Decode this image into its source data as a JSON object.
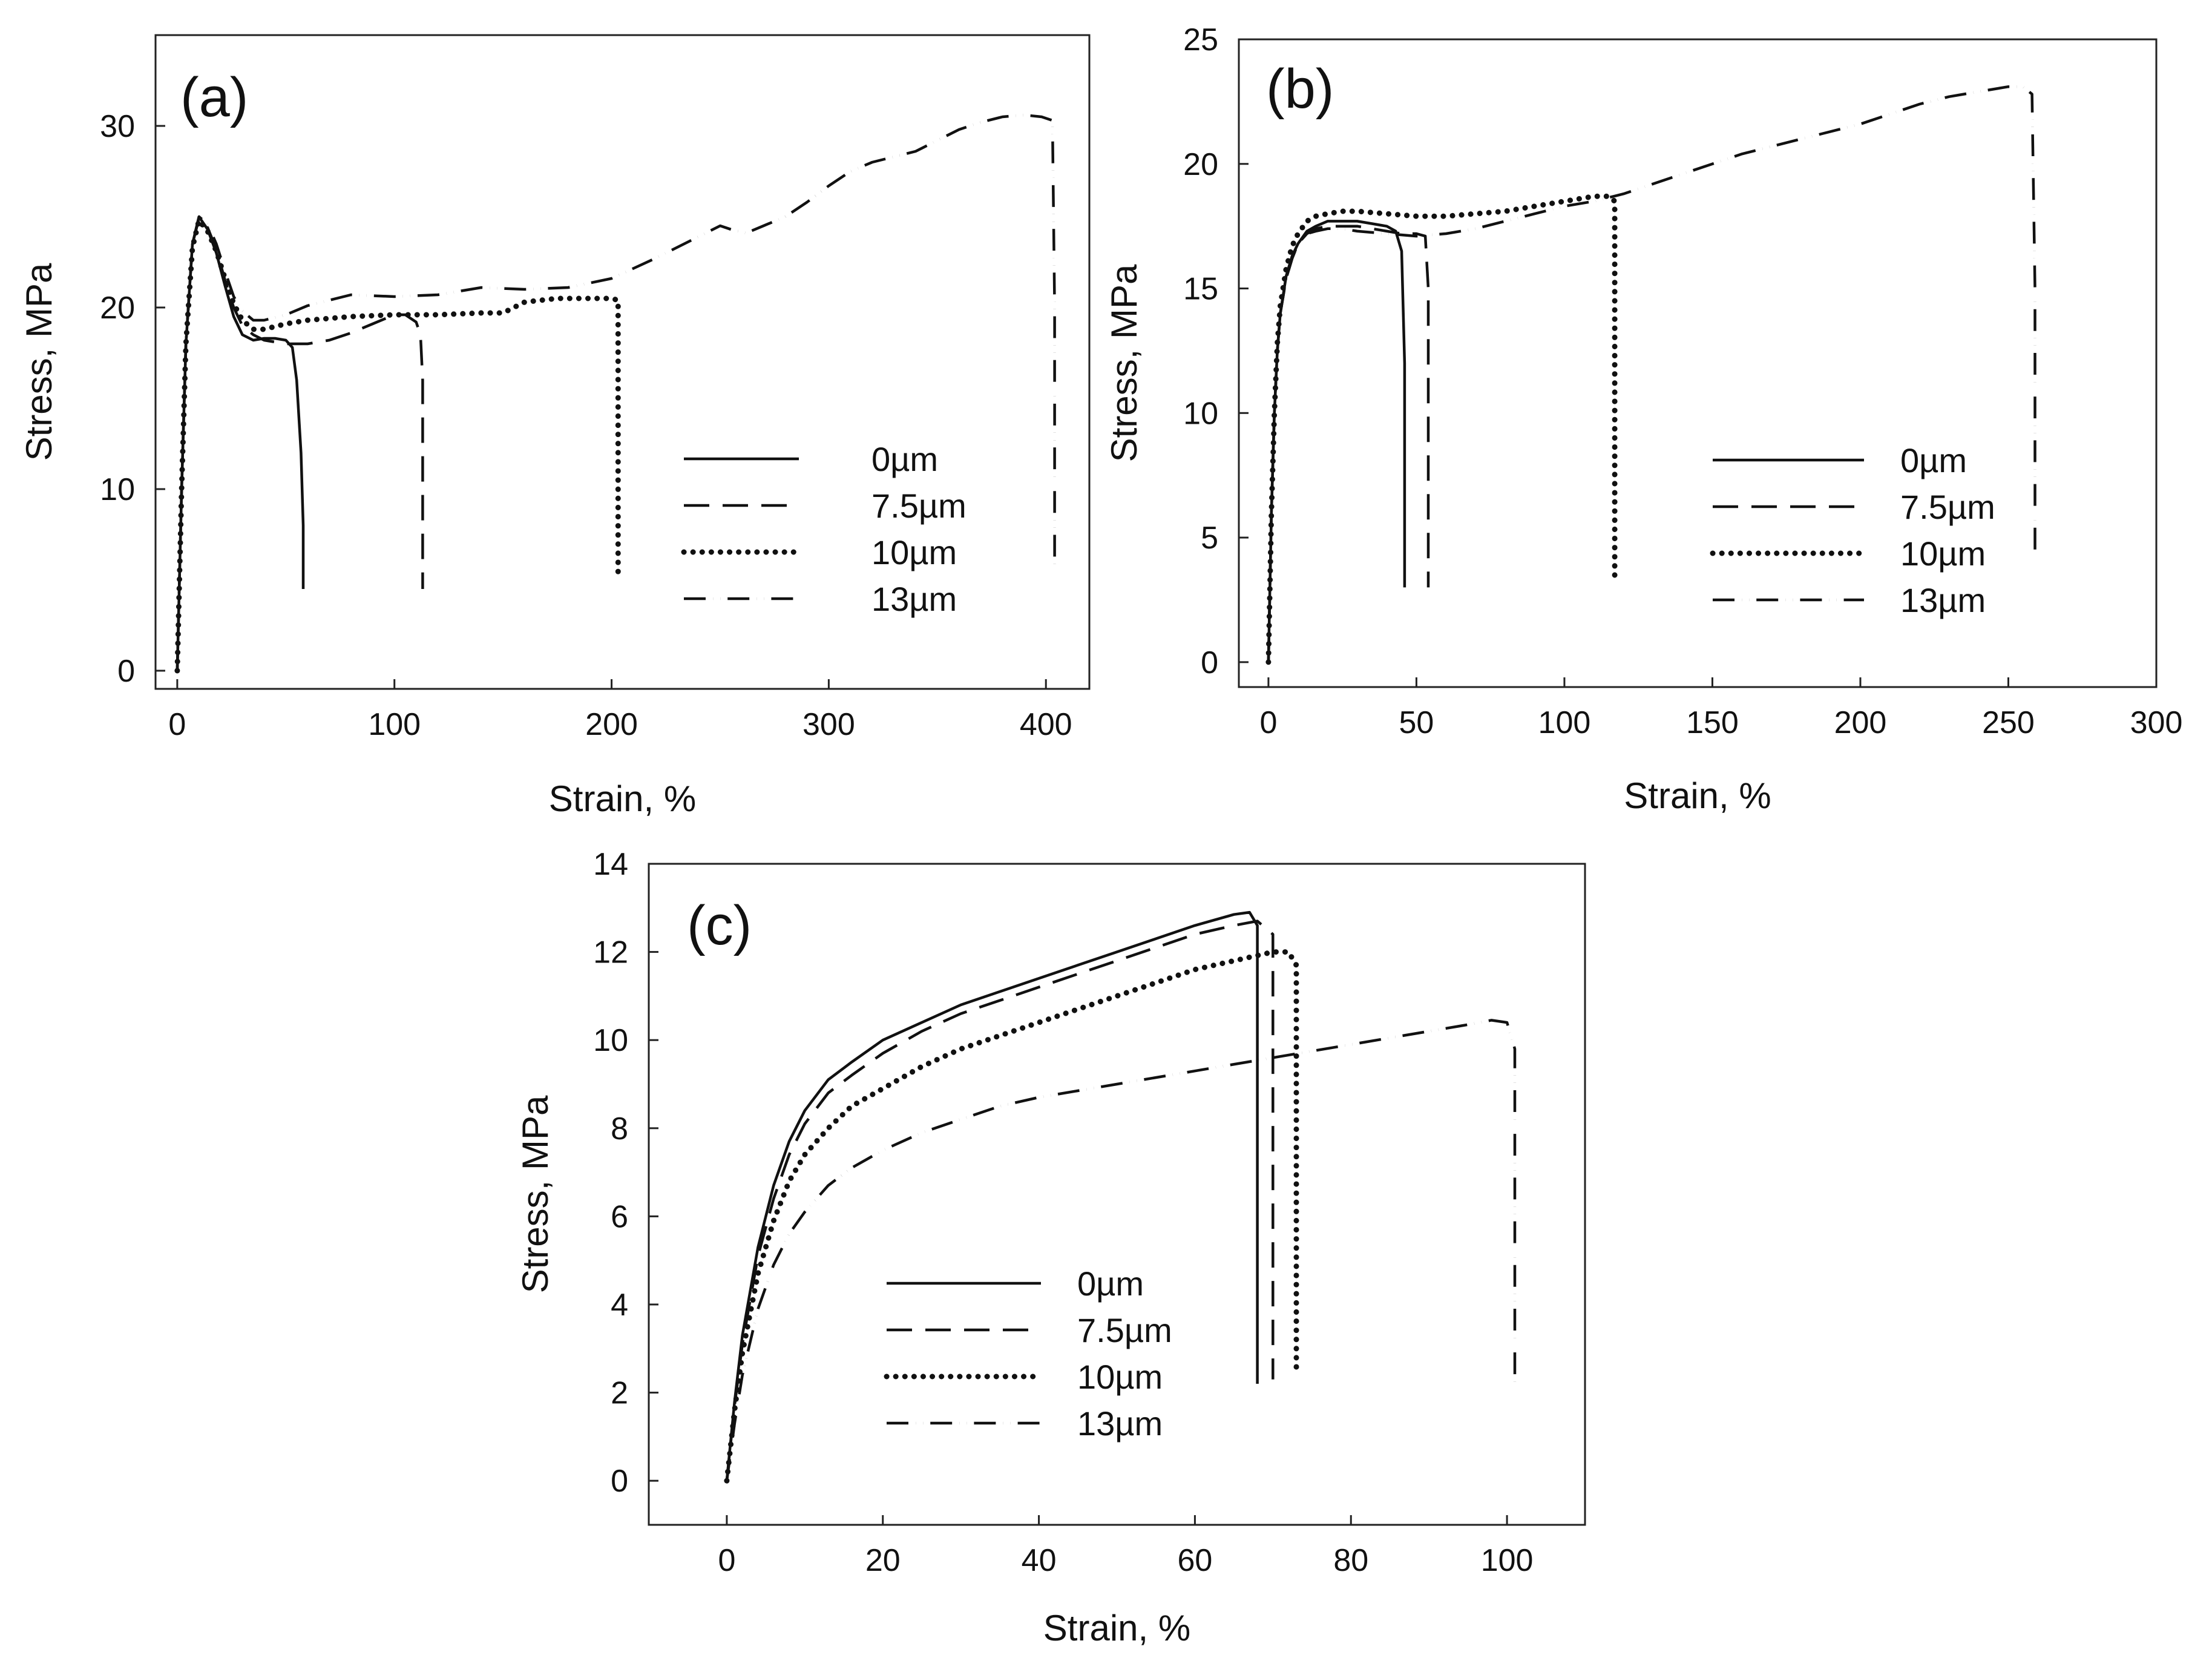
{
  "chart_data": [
    {
      "type": "line",
      "panel_label": "(a)",
      "xlabel": "Strain, %",
      "ylabel": "Stress, MPa",
      "xlim": [
        -10,
        420
      ],
      "ylim": [
        -1,
        35
      ],
      "xticks": [
        0,
        100,
        200,
        300,
        400
      ],
      "yticks": [
        0,
        10,
        20,
        30
      ],
      "legend_position": "center-right",
      "series": [
        {
          "name": "0µm",
          "style": "solid",
          "x": [
            0,
            2,
            4,
            7,
            10,
            14,
            18,
            22,
            26,
            30,
            35,
            40,
            45,
            50,
            53,
            55,
            57,
            58,
            58
          ],
          "y": [
            0,
            10,
            18,
            23.5,
            25,
            24.3,
            23,
            21.2,
            19.5,
            18.5,
            18.2,
            18.3,
            18.3,
            18.2,
            17.8,
            16,
            12,
            8,
            4.5
          ]
        },
        {
          "name": "7.5µm",
          "style": "dashed",
          "x": [
            0,
            2,
            4,
            7,
            10,
            14,
            18,
            22,
            26,
            30,
            35,
            40,
            50,
            60,
            70,
            80,
            90,
            100,
            105,
            110,
            112,
            113,
            113
          ],
          "y": [
            0,
            10,
            18,
            23.5,
            24.9,
            24.4,
            23.2,
            21.5,
            20,
            19,
            18.5,
            18.2,
            18,
            18,
            18.2,
            18.6,
            19.1,
            19.6,
            19.6,
            19.2,
            18.5,
            16,
            4.5
          ]
        },
        {
          "name": "10µm",
          "style": "dotted",
          "x": [
            0,
            2,
            4,
            7,
            10,
            14,
            18,
            22,
            26,
            30,
            35,
            40,
            50,
            60,
            80,
            100,
            120,
            140,
            150,
            160,
            175,
            190,
            200,
            203,
            203
          ],
          "y": [
            0,
            10,
            18,
            23.3,
            24.8,
            24.2,
            23.1,
            21.6,
            20.2,
            19.3,
            18.8,
            18.8,
            19.1,
            19.3,
            19.5,
            19.6,
            19.6,
            19.7,
            19.7,
            20.3,
            20.5,
            20.5,
            20.5,
            20.4,
            5
          ]
        },
        {
          "name": "13µm",
          "style": "dash-dot-dot",
          "x": [
            0,
            2,
            4,
            7,
            10,
            14,
            18,
            22,
            26,
            30,
            35,
            40,
            50,
            60,
            70,
            80,
            100,
            120,
            140,
            160,
            180,
            200,
            220,
            240,
            250,
            255,
            262,
            270,
            280,
            290,
            300,
            310,
            320,
            340,
            350,
            360,
            370,
            380,
            390,
            398,
            403,
            404,
            404
          ],
          "y": [
            0,
            10,
            18,
            23.5,
            25,
            24.6,
            23.5,
            22,
            20.6,
            19.8,
            19.3,
            19.3,
            19.6,
            20.1,
            20.4,
            20.7,
            20.6,
            20.7,
            21.1,
            21,
            21.1,
            21.6,
            22.7,
            23.9,
            24.5,
            24.3,
            24.1,
            24.5,
            25,
            25.8,
            26.7,
            27.5,
            28,
            28.6,
            29.2,
            29.8,
            30.2,
            30.5,
            30.6,
            30.5,
            30.3,
            20,
            5.5
          ]
        }
      ]
    },
    {
      "type": "line",
      "panel_label": "(b)",
      "xlabel": "Strain, %",
      "ylabel": "Stress, MPa",
      "xlim": [
        -10,
        300
      ],
      "ylim": [
        -1,
        25
      ],
      "xticks": [
        0,
        50,
        100,
        150,
        200,
        250,
        300
      ],
      "yticks": [
        0,
        5,
        10,
        15,
        20,
        25
      ],
      "legend_position": "center-right",
      "series": [
        {
          "name": "0µm",
          "style": "solid",
          "x": [
            0,
            1,
            2,
            3,
            4,
            6,
            8,
            10,
            13,
            16,
            20,
            25,
            30,
            35,
            40,
            43,
            45,
            46,
            46
          ],
          "y": [
            0,
            6,
            10,
            12.5,
            14,
            15.5,
            16.3,
            16.8,
            17.3,
            17.5,
            17.7,
            17.7,
            17.7,
            17.6,
            17.5,
            17.3,
            16.5,
            12,
            3
          ]
        },
        {
          "name": "7.5µm",
          "style": "dashed",
          "x": [
            0,
            1,
            2,
            3,
            4,
            6,
            8,
            10,
            13,
            16,
            20,
            25,
            30,
            35,
            40,
            45,
            50,
            53,
            54,
            54
          ],
          "y": [
            0,
            6,
            10,
            12.5,
            14,
            15.4,
            16.2,
            16.8,
            17.2,
            17.4,
            17.5,
            17.5,
            17.5,
            17.4,
            17.3,
            17.2,
            17.2,
            17.1,
            15,
            3
          ]
        },
        {
          "name": "10µm",
          "style": "dotted",
          "x": [
            0,
            1,
            2,
            3,
            4,
            6,
            8,
            10,
            13,
            16,
            20,
            25,
            30,
            40,
            50,
            60,
            70,
            80,
            90,
            100,
            110,
            115,
            117,
            117
          ],
          "y": [
            0,
            6,
            10,
            12.8,
            14.3,
            15.8,
            16.7,
            17.2,
            17.7,
            17.9,
            18,
            18.1,
            18.1,
            18,
            17.9,
            17.9,
            18,
            18.1,
            18.3,
            18.5,
            18.7,
            18.7,
            18.5,
            3.3
          ]
        },
        {
          "name": "13µm",
          "style": "dash-dot-dot",
          "x": [
            0,
            1,
            2,
            3,
            4,
            6,
            8,
            10,
            13,
            16,
            20,
            25,
            30,
            40,
            50,
            60,
            70,
            80,
            90,
            100,
            110,
            120,
            140,
            160,
            180,
            200,
            210,
            220,
            230,
            240,
            250,
            255,
            258,
            259,
            259
          ],
          "y": [
            0,
            6,
            10,
            12.5,
            14,
            15.4,
            16.2,
            16.8,
            17.2,
            17.3,
            17.4,
            17.4,
            17.3,
            17.2,
            17.1,
            17.2,
            17.4,
            17.7,
            18,
            18.3,
            18.5,
            18.8,
            19.6,
            20.4,
            21,
            21.6,
            22,
            22.4,
            22.7,
            22.9,
            23.1,
            23.1,
            22.8,
            15,
            4.5
          ]
        }
      ]
    },
    {
      "type": "line",
      "panel_label": "(c)",
      "xlabel": "Strain, %",
      "ylabel": "Stress, MPa",
      "xlim": [
        -10,
        110
      ],
      "ylim": [
        -1,
        14
      ],
      "xticks": [
        0,
        20,
        40,
        60,
        80,
        100
      ],
      "yticks": [
        0,
        2,
        4,
        6,
        8,
        10,
        12,
        14
      ],
      "legend_position": "lower-center",
      "series": [
        {
          "name": "0µm",
          "style": "solid",
          "x": [
            0,
            1,
            2,
            4,
            6,
            8,
            10,
            13,
            16,
            20,
            25,
            30,
            35,
            40,
            45,
            50,
            55,
            60,
            65,
            67,
            68,
            68
          ],
          "y": [
            0,
            1.8,
            3.3,
            5.3,
            6.7,
            7.7,
            8.4,
            9.1,
            9.5,
            10,
            10.4,
            10.8,
            11.1,
            11.4,
            11.7,
            12,
            12.3,
            12.6,
            12.85,
            12.9,
            12.6,
            2.2
          ]
        },
        {
          "name": "7.5µm",
          "style": "dashed",
          "x": [
            0,
            1,
            2,
            4,
            6,
            8,
            10,
            13,
            16,
            20,
            25,
            30,
            35,
            40,
            45,
            50,
            55,
            60,
            65,
            68,
            70,
            70
          ],
          "y": [
            0,
            1.7,
            3.1,
            5.1,
            6.4,
            7.4,
            8.1,
            8.8,
            9.2,
            9.7,
            10.2,
            10.6,
            10.9,
            11.2,
            11.5,
            11.8,
            12.1,
            12.4,
            12.6,
            12.7,
            12.4,
            2.3
          ]
        },
        {
          "name": "10µm",
          "style": "dotted",
          "x": [
            0,
            1,
            2,
            4,
            6,
            8,
            10,
            13,
            16,
            20,
            25,
            30,
            35,
            40,
            45,
            50,
            55,
            60,
            65,
            70,
            72,
            73,
            73
          ],
          "y": [
            0,
            1.6,
            2.9,
            4.7,
            5.9,
            6.8,
            7.4,
            8,
            8.5,
            8.9,
            9.4,
            9.8,
            10.1,
            10.4,
            10.7,
            11,
            11.3,
            11.6,
            11.8,
            12,
            12,
            11.7,
            2.4
          ]
        },
        {
          "name": "13µm",
          "style": "dash-dot-dot",
          "x": [
            0,
            1,
            2,
            4,
            6,
            8,
            10,
            13,
            16,
            20,
            25,
            30,
            35,
            40,
            50,
            60,
            70,
            80,
            90,
            95,
            98,
            100,
            101,
            101
          ],
          "y": [
            0,
            1.3,
            2.4,
            3.9,
            4.9,
            5.6,
            6.1,
            6.7,
            7.1,
            7.5,
            7.9,
            8.2,
            8.5,
            8.7,
            9,
            9.3,
            9.6,
            9.9,
            10.2,
            10.35,
            10.45,
            10.4,
            9.8,
            2.1
          ]
        }
      ]
    }
  ]
}
